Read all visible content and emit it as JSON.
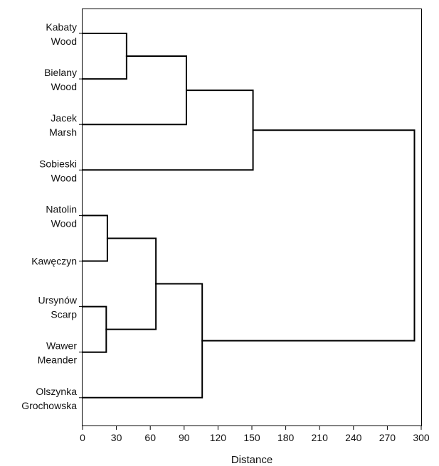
{
  "chart_data": {
    "type": "dendrogram",
    "orientation": "horizontal",
    "xlabel": "Distance",
    "xlim": [
      0,
      300
    ],
    "xticks": [
      "0",
      "30",
      "60",
      "90",
      "120",
      "150",
      "180",
      "210",
      "240",
      "270",
      "300"
    ],
    "grid": false,
    "colors": {
      "line": "#000000",
      "text": "#111111",
      "background": "#ffffff"
    },
    "leaves": [
      {
        "lines": [
          "Kabaty",
          "Wood"
        ]
      },
      {
        "lines": [
          "Bielany",
          "Wood"
        ]
      },
      {
        "lines": [
          "Jacek",
          "Marsh"
        ]
      },
      {
        "lines": [
          "Sobieski",
          "Wood"
        ]
      },
      {
        "lines": [
          "Natolin",
          "Wood"
        ]
      },
      {
        "lines": [
          "Kawęczyn"
        ]
      },
      {
        "lines": [
          "Ursynów",
          "Scarp"
        ]
      },
      {
        "lines": [
          "Wawer",
          "Meander"
        ]
      },
      {
        "lines": [
          "Olszynka",
          "Grochowska"
        ]
      }
    ],
    "merges": [
      {
        "left": 0,
        "right": 1,
        "distance": 39
      },
      {
        "left": 9,
        "right": 2,
        "distance": 92
      },
      {
        "left": 10,
        "right": 3,
        "distance": 151
      },
      {
        "left": 4,
        "right": 5,
        "distance": 22
      },
      {
        "left": 6,
        "right": 7,
        "distance": 21
      },
      {
        "left": 12,
        "right": 13,
        "distance": 65
      },
      {
        "left": 14,
        "right": 8,
        "distance": 106
      },
      {
        "left": 11,
        "right": 15,
        "distance": 294
      }
    ]
  }
}
